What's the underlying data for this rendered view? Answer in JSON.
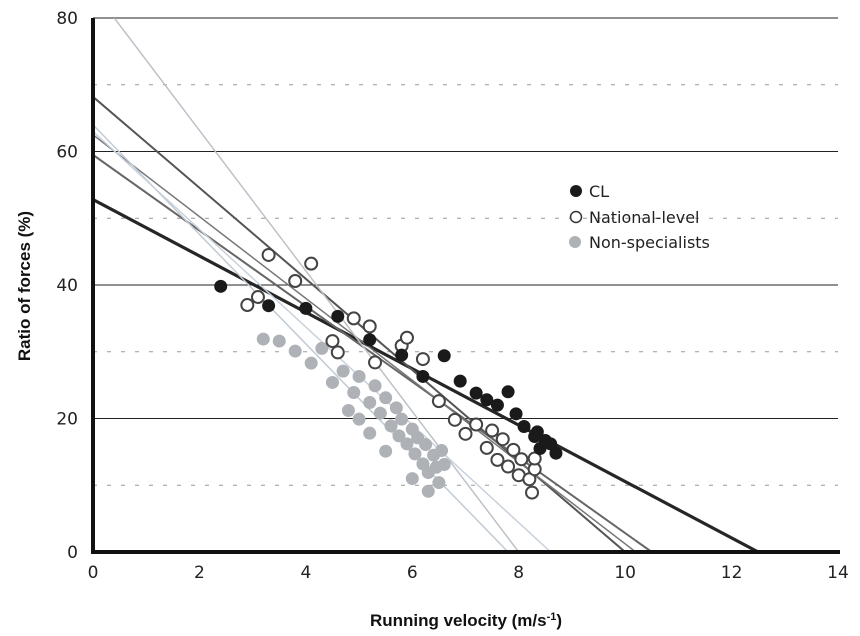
{
  "chart_data": {
    "type": "scatter",
    "xlabel": "Running velocity (m/s",
    "xlabel_sup": "-1",
    "xlabel_close": ")",
    "ylabel": "Ratio of forces (%)",
    "xlim": [
      0,
      14
    ],
    "ylim": [
      0,
      80
    ],
    "x_ticks": [
      "0",
      "2",
      "4",
      "6",
      "8",
      "10",
      "12",
      "14"
    ],
    "y_ticks": [
      "0",
      "20",
      "40",
      "60",
      "80"
    ],
    "grid": "solid horizontal lines at major ticks, dashed at midpoints",
    "legend_position": "upper-right",
    "series": [
      {
        "name": "CL",
        "style": "filled",
        "color": "#1a1a1a",
        "points": [
          [
            2.4,
            39.8
          ],
          [
            3.3,
            36.9
          ],
          [
            4.0,
            36.5
          ],
          [
            4.6,
            35.3
          ],
          [
            5.2,
            31.8
          ],
          [
            5.8,
            29.5
          ],
          [
            6.2,
            26.3
          ],
          [
            6.6,
            29.4
          ],
          [
            6.9,
            25.6
          ],
          [
            7.2,
            23.8
          ],
          [
            7.4,
            22.8
          ],
          [
            7.6,
            22.0
          ],
          [
            7.8,
            24.0
          ],
          [
            7.95,
            20.7
          ],
          [
            8.1,
            18.8
          ],
          [
            8.3,
            17.3
          ],
          [
            8.4,
            15.5
          ],
          [
            8.5,
            16.7
          ],
          [
            8.6,
            16.2
          ],
          [
            8.7,
            14.8
          ],
          [
            8.35,
            18.0
          ]
        ]
      },
      {
        "name": "National-level",
        "style": "open",
        "color": "#444444",
        "points": [
          [
            2.9,
            37.0
          ],
          [
            3.1,
            38.2
          ],
          [
            3.3,
            44.5
          ],
          [
            3.8,
            40.6
          ],
          [
            4.1,
            43.2
          ],
          [
            4.5,
            31.6
          ],
          [
            4.6,
            29.9
          ],
          [
            4.9,
            35.0
          ],
          [
            5.2,
            33.8
          ],
          [
            5.3,
            28.4
          ],
          [
            5.8,
            30.9
          ],
          [
            5.9,
            32.1
          ],
          [
            6.2,
            28.9
          ],
          [
            6.5,
            22.6
          ],
          [
            6.8,
            19.8
          ],
          [
            7.0,
            17.7
          ],
          [
            7.2,
            19.1
          ],
          [
            7.4,
            15.6
          ],
          [
            7.5,
            18.2
          ],
          [
            7.6,
            13.8
          ],
          [
            7.7,
            16.9
          ],
          [
            7.8,
            12.8
          ],
          [
            7.9,
            15.3
          ],
          [
            8.0,
            11.5
          ],
          [
            8.05,
            13.9
          ],
          [
            8.2,
            10.9
          ],
          [
            8.25,
            8.9
          ],
          [
            8.3,
            12.4
          ],
          [
            8.3,
            14.0
          ]
        ]
      },
      {
        "name": "Non-specialists",
        "style": "filled",
        "color": "#aeb2b6",
        "points": [
          [
            3.2,
            31.9
          ],
          [
            3.5,
            31.6
          ],
          [
            3.8,
            30.1
          ],
          [
            4.1,
            28.3
          ],
          [
            4.3,
            30.5
          ],
          [
            4.5,
            25.4
          ],
          [
            4.7,
            27.1
          ],
          [
            4.9,
            23.9
          ],
          [
            5.0,
            26.3
          ],
          [
            5.2,
            22.4
          ],
          [
            5.3,
            24.9
          ],
          [
            5.4,
            20.8
          ],
          [
            5.5,
            23.1
          ],
          [
            5.6,
            18.9
          ],
          [
            5.7,
            21.6
          ],
          [
            5.75,
            17.4
          ],
          [
            5.8,
            19.9
          ],
          [
            5.9,
            16.2
          ],
          [
            6.0,
            18.4
          ],
          [
            6.05,
            14.7
          ],
          [
            6.1,
            17.1
          ],
          [
            6.2,
            13.2
          ],
          [
            6.25,
            16.1
          ],
          [
            6.3,
            11.9
          ],
          [
            6.4,
            14.5
          ],
          [
            6.45,
            12.7
          ],
          [
            6.5,
            10.4
          ],
          [
            6.55,
            15.2
          ],
          [
            6.6,
            13.1
          ],
          [
            6.3,
            9.1
          ],
          [
            5.5,
            15.1
          ],
          [
            5.2,
            17.8
          ],
          [
            5.0,
            19.9
          ],
          [
            4.8,
            21.2
          ],
          [
            6.0,
            11.0
          ]
        ]
      }
    ],
    "regression_lines": [
      {
        "series": "CL",
        "color": "#262626",
        "width": 3.2,
        "x0": 0,
        "y0": 52.8,
        "x1": 12.5,
        "y1": 0
      },
      {
        "series": "National-level",
        "color": "#555555",
        "width": 2,
        "x0": 0,
        "y0": 68.2,
        "x1": 10.0,
        "y1": 0
      },
      {
        "series": "National-level",
        "color": "#666666",
        "width": 2,
        "x0": 0,
        "y0": 59.5,
        "x1": 10.5,
        "y1": 0
      },
      {
        "series": "National-level",
        "color": "#777777",
        "width": 1.5,
        "x0": 0,
        "y0": 62.5,
        "x1": 10.2,
        "y1": 0
      },
      {
        "series": "Non-specialists",
        "color": "#bcc2c8",
        "width": 1.5,
        "x0": 0.4,
        "y0": 80,
        "x1": 8.0,
        "y1": 0
      },
      {
        "series": "Non-specialists",
        "color": "#c2cbd4",
        "width": 1.5,
        "x0": 0,
        "y0": 64.0,
        "x1": 7.8,
        "y1": 0
      },
      {
        "series": "Non-specialists",
        "color": "#c8d2dc",
        "width": 1.5,
        "x0": 0,
        "y0": 63.0,
        "x1": 8.6,
        "y1": 0
      }
    ]
  }
}
